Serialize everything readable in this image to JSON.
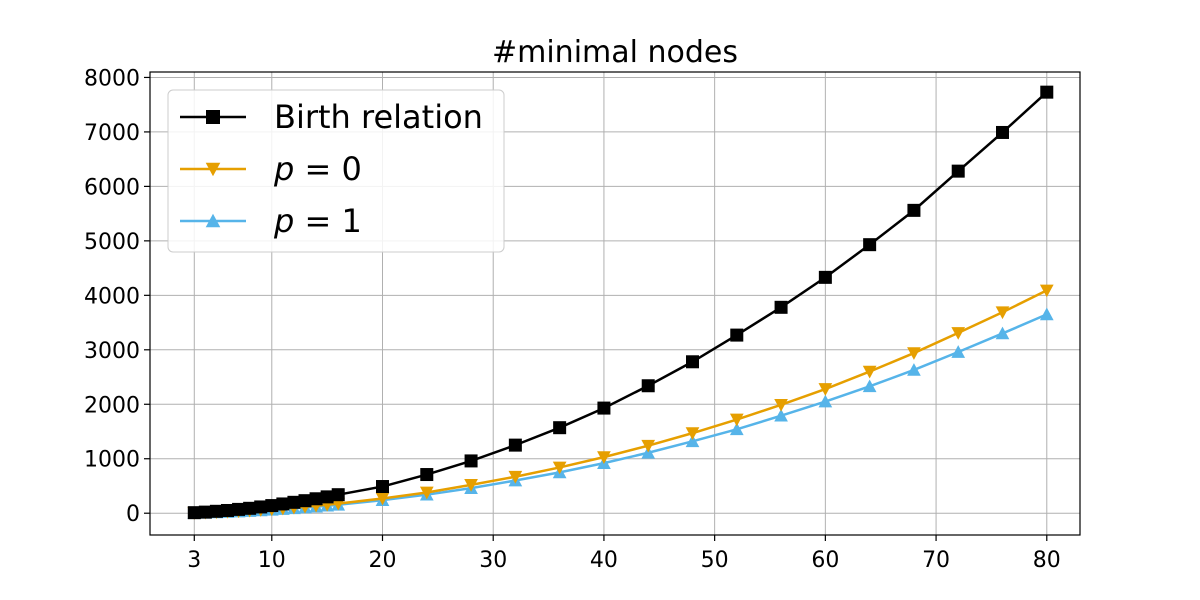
{
  "chart_data": {
    "type": "line",
    "title": "#minimal nodes",
    "xlabel": "",
    "ylabel": "",
    "xlim": [
      -1,
      83
    ],
    "ylim": [
      -400,
      8100
    ],
    "grid": true,
    "legend_position": "top-left",
    "xticks": [
      3,
      10,
      20,
      30,
      40,
      50,
      60,
      70,
      80
    ],
    "yticks": [
      0,
      1000,
      2000,
      3000,
      4000,
      5000,
      6000,
      7000,
      8000
    ],
    "x": [
      3,
      4,
      5,
      6,
      7,
      8,
      9,
      10,
      11,
      12,
      13,
      14,
      15,
      16,
      20,
      24,
      28,
      32,
      36,
      40,
      44,
      48,
      52,
      56,
      60,
      64,
      68,
      72,
      76,
      80
    ],
    "series": [
      {
        "name": "Birth relation",
        "color": "#000000",
        "marker": "square",
        "values": [
          10,
          20,
          35,
          50,
          70,
          90,
          115,
          140,
          170,
          200,
          230,
          265,
          300,
          340,
          490,
          710,
          960,
          1250,
          1570,
          1930,
          2340,
          2780,
          3270,
          3780,
          4330,
          4930,
          5560,
          6280,
          6990,
          7730
        ]
      },
      {
        "name": "p = 0",
        "label_italic": "p",
        "label_rest": " = 0",
        "color": "#e69f00",
        "marker": "triangle-down",
        "values": [
          5,
          10,
          18,
          26,
          36,
          46,
          58,
          72,
          86,
          102,
          118,
          136,
          155,
          175,
          270,
          380,
          520,
          670,
          840,
          1030,
          1240,
          1470,
          1720,
          1990,
          2280,
          2600,
          2940,
          3310,
          3690,
          4090
        ]
      },
      {
        "name": "p = 1",
        "label_italic": "p",
        "label_rest": " = 1",
        "color": "#56b4e9",
        "marker": "triangle-up",
        "values": [
          4,
          8,
          15,
          22,
          31,
          40,
          51,
          63,
          76,
          90,
          105,
          121,
          138,
          156,
          240,
          340,
          460,
          600,
          750,
          920,
          1110,
          1320,
          1540,
          1790,
          2050,
          2330,
          2630,
          2960,
          3300,
          3650
        ]
      }
    ]
  }
}
